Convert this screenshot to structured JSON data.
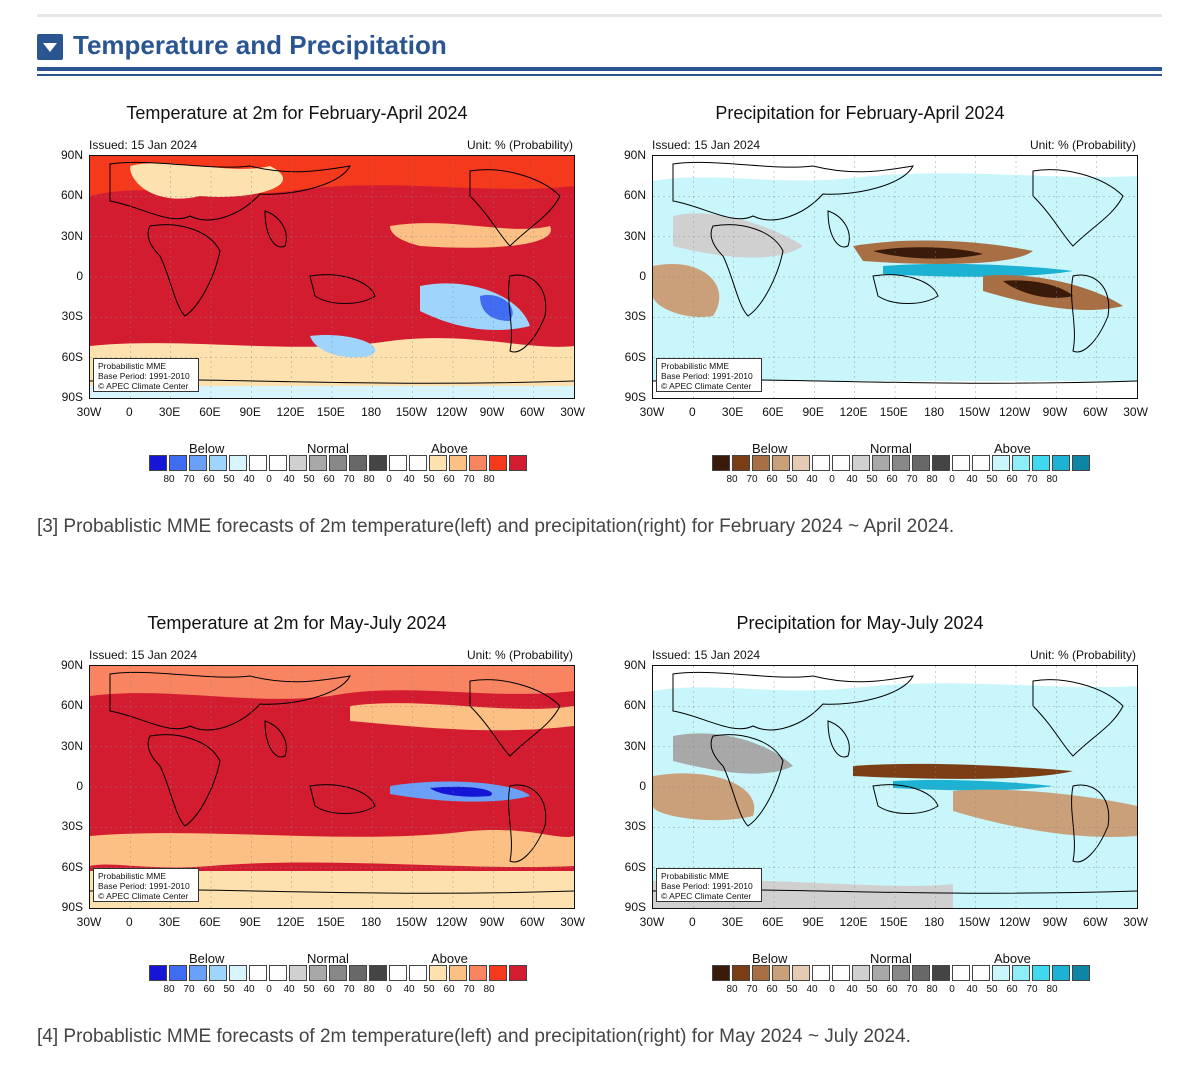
{
  "section": {
    "title": "Temperature and Precipitation",
    "toggle_icon": "caret-down-icon",
    "accent_color": "#2b5590"
  },
  "common": {
    "issued": "Issued: 15 Jan 2024",
    "unit": "Unit: % (Probability)",
    "credit_lines": [
      "Probabilistic MME",
      "Base Period: 1991-2010",
      "© APEC Climate Center"
    ],
    "lat_labels": [
      "90N",
      "60N",
      "30N",
      "0",
      "30S",
      "60S",
      "90S"
    ],
    "lon_labels": [
      "30W",
      "0",
      "30E",
      "60E",
      "90E",
      "120E",
      "150E",
      "180",
      "150W",
      "120W",
      "90W",
      "60W",
      "30W"
    ],
    "legend_groups": [
      "Below",
      "Normal",
      "Above"
    ],
    "legend_numbers": [
      "80",
      "70",
      "60",
      "50",
      "40",
      "0",
      "40",
      "50",
      "60",
      "70",
      "80",
      "0",
      "40",
      "50",
      "60",
      "70",
      "80"
    ]
  },
  "colors": {
    "temp_below": [
      "#1515d6",
      "#3f6cf2",
      "#6aa0f8",
      "#9fd4fc",
      "#d8f4fc"
    ],
    "temp_above": [
      "#fde2b0",
      "#fcbf84",
      "#f98462",
      "#f5391d",
      "#d41c30"
    ],
    "prec_below": [
      "#3a1a08",
      "#7a3d14",
      "#a86e44",
      "#caa07a",
      "#e6cbb4"
    ],
    "prec_above": [
      "#c8f6fb",
      "#8eeef8",
      "#3fd8ef",
      "#1bb2d3",
      "#0d86a6"
    ],
    "normal": [
      "#d0d0d0",
      "#a8a8a8",
      "#888888",
      "#686868",
      "#444444"
    ],
    "land_outline": "#000000"
  },
  "panels": [
    {
      "title": "Temperature at 2m for February-April 2024",
      "variable": "temperature"
    },
    {
      "title": "Precipitation for February-April 2024",
      "variable": "precipitation"
    },
    {
      "title": "Temperature at 2m for May-July 2024",
      "variable": "temperature"
    },
    {
      "title": "Precipitation for May-July 2024",
      "variable": "precipitation"
    }
  ],
  "captions": [
    "[3] Probablistic MME forecasts of 2m temperature(left) and precipitation(right) for February 2024 ~ April 2024.",
    "[4] Probablistic MME forecasts of 2m temperature(left) and precipitation(right) for May 2024 ~ July 2024."
  ]
}
